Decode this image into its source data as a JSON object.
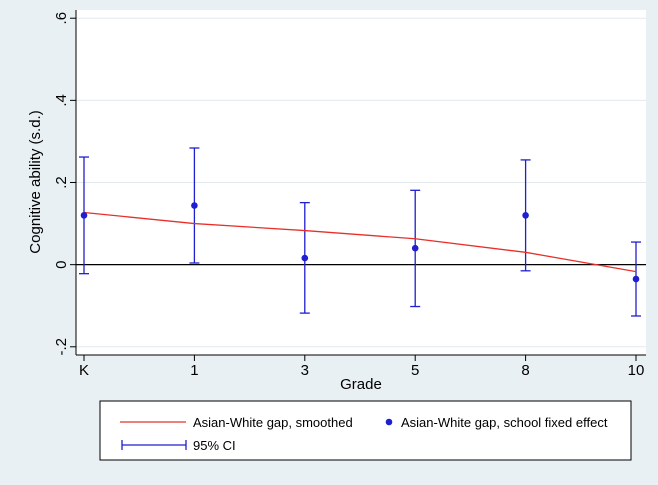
{
  "chart_data": {
    "type": "scatter",
    "xlabel": "Grade",
    "ylabel": "Cognitive ability (s.d.)",
    "categories": [
      "K",
      "1",
      "3",
      "5",
      "8",
      "10"
    ],
    "yticks": [
      -0.2,
      0,
      0.2,
      0.4,
      0.6
    ],
    "ytick_labels": [
      "-.2",
      "0",
      ".2",
      ".4",
      ".6"
    ],
    "ylim": [
      -0.22,
      0.62
    ],
    "grid": true,
    "reference_line": 0,
    "series": [
      {
        "name": "Asian-White gap, smoothed",
        "kind": "line",
        "color": "#e8302a",
        "values": [
          0.127,
          0.1,
          0.083,
          0.063,
          0.03,
          -0.017
        ]
      },
      {
        "name": "Asian-White gap, school fixed effect",
        "kind": "points",
        "color": "#1f1fd0",
        "values": [
          0.12,
          0.144,
          0.016,
          0.04,
          0.12,
          -0.035
        ]
      },
      {
        "name": "95% CI",
        "kind": "errorbar",
        "color": "#1f1fd0",
        "lower": [
          -0.022,
          0.004,
          -0.118,
          -0.102,
          -0.015,
          -0.125
        ],
        "upper": [
          0.262,
          0.284,
          0.151,
          0.181,
          0.255,
          0.055
        ]
      }
    ],
    "legend": {
      "position": "bottom",
      "entries": [
        "Asian-White gap, smoothed",
        "Asian-White gap, school fixed effect",
        "95% CI"
      ]
    }
  },
  "colors": {
    "background": "#e8f0f4",
    "plot_area": "#ffffff",
    "grid": "#e2eaee",
    "axis": "#000000"
  }
}
